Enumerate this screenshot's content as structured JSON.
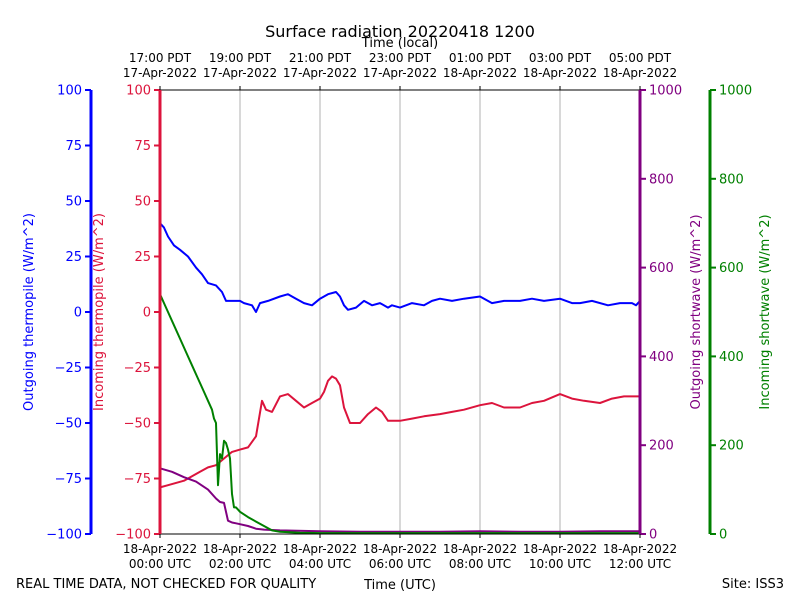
{
  "chart_data": {
    "type": "line",
    "title": "Surface radiation 20220418 1200",
    "top_axis_label": "Time (local)",
    "xlabel": "Time (UTC)",
    "footer_left": "REAL TIME DATA, NOT CHECKED FOR QUALITY",
    "footer_right": "Site: ISS3",
    "x_hours_range": [
      0,
      12
    ],
    "bottom_ticks": [
      {
        "hour": 0,
        "line1": "18-Apr-2022",
        "line2": "00:00 UTC"
      },
      {
        "hour": 2,
        "line1": "18-Apr-2022",
        "line2": "02:00 UTC"
      },
      {
        "hour": 4,
        "line1": "18-Apr-2022",
        "line2": "04:00 UTC"
      },
      {
        "hour": 6,
        "line1": "18-Apr-2022",
        "line2": "06:00 UTC"
      },
      {
        "hour": 8,
        "line1": "18-Apr-2022",
        "line2": "08:00 UTC"
      },
      {
        "hour": 10,
        "line1": "18-Apr-2022",
        "line2": "10:00 UTC"
      },
      {
        "hour": 12,
        "line1": "18-Apr-2022",
        "line2": "12:00 UTC"
      }
    ],
    "top_ticks": [
      {
        "hour": 0,
        "line1": "17:00 PDT",
        "line2": "17-Apr-2022"
      },
      {
        "hour": 2,
        "line1": "19:00 PDT",
        "line2": "17-Apr-2022"
      },
      {
        "hour": 4,
        "line1": "21:00 PDT",
        "line2": "17-Apr-2022"
      },
      {
        "hour": 6,
        "line1": "23:00 PDT",
        "line2": "17-Apr-2022"
      },
      {
        "hour": 8,
        "line1": "01:00 PDT",
        "line2": "18-Apr-2022"
      },
      {
        "hour": 10,
        "line1": "03:00 PDT",
        "line2": "18-Apr-2022"
      },
      {
        "hour": 12,
        "line1": "05:00 PDT",
        "line2": "18-Apr-2022"
      }
    ],
    "axes": [
      {
        "id": "outgoing_thermopile",
        "label": "Outgoing thermopile (W/m^2)",
        "color": "#0000ff",
        "ylim": [
          -100,
          100
        ],
        "ticks": [
          -100,
          -75,
          -50,
          -25,
          0,
          25,
          50,
          75,
          100
        ]
      },
      {
        "id": "incoming_thermopile",
        "label": "Incoming thermopile (W/m^2)",
        "color": "#dc143c",
        "ylim": [
          -100,
          100
        ],
        "ticks": [
          -100,
          -75,
          -50,
          -25,
          0,
          25,
          50,
          75,
          100
        ]
      },
      {
        "id": "outgoing_shortwave",
        "label": "Outgoing shortwave (W/m^2)",
        "color": "#800080",
        "ylim": [
          0,
          1000
        ],
        "ticks": [
          0,
          200,
          400,
          600,
          800,
          1000
        ]
      },
      {
        "id": "incoming_shortwave",
        "label": "Incoming shortwave (W/m^2)",
        "color": "#008000",
        "ylim": [
          0,
          1000
        ],
        "ticks": [
          0,
          200,
          400,
          600,
          800,
          1000
        ]
      }
    ],
    "series": [
      {
        "name": "Outgoing thermopile",
        "axis": "outgoing_thermopile",
        "color": "#0000ff",
        "x": [
          0,
          0.1,
          0.2,
          0.35,
          0.5,
          0.7,
          0.9,
          1.05,
          1.2,
          1.4,
          1.55,
          1.65,
          2.0,
          2.1,
          2.3,
          2.4,
          2.5,
          2.7,
          3.0,
          3.2,
          3.4,
          3.6,
          3.8,
          4.0,
          4.2,
          4.4,
          4.5,
          4.6,
          4.7,
          4.9,
          5.1,
          5.3,
          5.5,
          5.7,
          5.8,
          6.0,
          6.3,
          6.6,
          6.8,
          7.0,
          7.3,
          7.6,
          8.0,
          8.3,
          8.6,
          9.0,
          9.3,
          9.6,
          10.0,
          10.3,
          10.5,
          10.8,
          11.2,
          11.5,
          11.8,
          11.9,
          12.0
        ],
        "values": [
          40,
          38,
          34,
          30,
          28,
          25,
          20,
          17,
          13,
          12,
          9,
          5,
          5,
          4,
          3,
          0,
          4,
          5,
          7,
          8,
          6,
          4,
          3,
          6,
          8,
          9,
          7,
          3,
          1,
          2,
          5,
          3,
          4,
          2,
          3,
          2,
          4,
          3,
          5,
          6,
          5,
          6,
          7,
          4,
          5,
          5,
          6,
          5,
          6,
          4,
          4,
          5,
          3,
          4,
          4,
          3,
          5
        ]
      },
      {
        "name": "Incoming thermopile",
        "axis": "incoming_thermopile",
        "color": "#dc143c",
        "x": [
          0,
          0.2,
          0.4,
          0.6,
          0.8,
          1.0,
          1.2,
          1.4,
          1.6,
          1.8,
          2.0,
          2.2,
          2.4,
          2.55,
          2.6,
          2.65,
          2.8,
          3.0,
          3.2,
          3.4,
          3.6,
          3.7,
          3.8,
          4.0,
          4.1,
          4.2,
          4.3,
          4.4,
          4.5,
          4.6,
          4.75,
          5.0,
          5.2,
          5.4,
          5.55,
          5.7,
          6.0,
          6.3,
          6.6,
          7.0,
          7.3,
          7.6,
          8.0,
          8.3,
          8.6,
          9.0,
          9.3,
          9.6,
          10.0,
          10.3,
          10.6,
          11.0,
          11.3,
          11.6,
          12.0
        ],
        "values": [
          -79,
          -78,
          -77,
          -76,
          -74,
          -72,
          -70,
          -69,
          -66,
          -63,
          -62,
          -61,
          -56,
          -40,
          -42,
          -44,
          -45,
          -38,
          -37,
          -40,
          -43,
          -42,
          -41,
          -39,
          -36,
          -31,
          -29,
          -30,
          -33,
          -43,
          -50,
          -50,
          -46,
          -43,
          -45,
          -49,
          -49,
          -48,
          -47,
          -46,
          -45,
          -44,
          -42,
          -41,
          -43,
          -43,
          -41,
          -40,
          -37,
          -39,
          -40,
          -41,
          -39,
          -38,
          -38
        ]
      },
      {
        "name": "Outgoing shortwave",
        "axis": "outgoing_shortwave",
        "color": "#800080",
        "x": [
          0,
          0.3,
          0.6,
          0.9,
          1.2,
          1.4,
          1.5,
          1.6,
          1.7,
          1.8,
          1.9,
          2.0,
          2.2,
          2.4,
          2.6,
          3.0,
          4.0,
          5.0,
          6.0,
          7.0,
          8.0,
          9.0,
          10.0,
          11.0,
          12.0
        ],
        "values": [
          148,
          140,
          128,
          118,
          100,
          80,
          72,
          70,
          30,
          26,
          24,
          22,
          18,
          12,
          10,
          8,
          6,
          5,
          5,
          5,
          6,
          5,
          5,
          6,
          6
        ]
      },
      {
        "name": "Incoming shortwave",
        "axis": "incoming_shortwave",
        "color": "#008000",
        "x": [
          0,
          0.1,
          0.2,
          0.35,
          0.5,
          0.65,
          0.8,
          0.95,
          1.1,
          1.2,
          1.3,
          1.35,
          1.4,
          1.45,
          1.5,
          1.55,
          1.6,
          1.65,
          1.7,
          1.75,
          1.8,
          1.85,
          1.9,
          1.95,
          2.0,
          2.2,
          2.4,
          2.6,
          2.8,
          3.0,
          3.5,
          4.0,
          5.0,
          6.0,
          7.0,
          8.0,
          9.0,
          10.0,
          11.0,
          12.0
        ],
        "values": [
          540,
          520,
          500,
          470,
          440,
          410,
          380,
          350,
          320,
          300,
          280,
          260,
          250,
          110,
          180,
          170,
          210,
          205,
          190,
          170,
          90,
          60,
          60,
          55,
          50,
          38,
          28,
          18,
          8,
          5,
          3,
          2,
          2,
          2,
          2,
          2,
          2,
          2,
          2,
          2
        ]
      }
    ]
  }
}
